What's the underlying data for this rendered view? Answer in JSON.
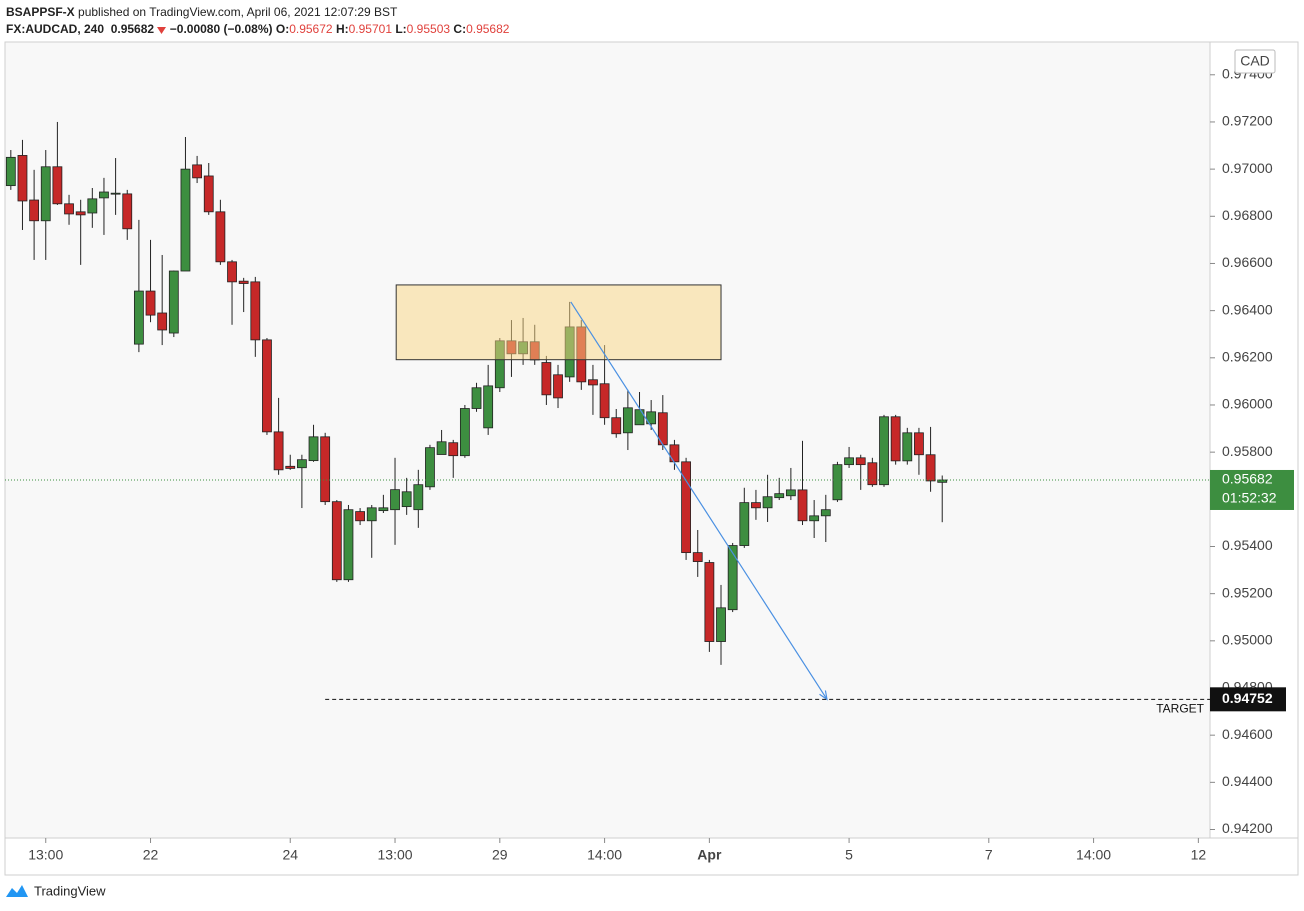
{
  "chart_data": {
    "type": "candlestick",
    "header": {
      "author": "BSAPPSF-X",
      "published": "published on TradingView.com, April 06, 2021 12:07:29 BST",
      "symbol": "FX:AUDCAD, 240",
      "change": "−0.00080 (−0.08%)",
      "ohlc_labels": [
        "O:",
        "H:",
        "L:",
        "C:"
      ]
    },
    "currency": "CAD",
    "countdown": "01:52:32",
    "target": {
      "value": 0.94752,
      "label": "TARGET",
      "x_start": 27
    },
    "zone": {
      "x": [
        33.1,
        61
      ],
      "y": [
        0.96192,
        0.96509
      ]
    },
    "arrow": {
      "x": [
        48.1,
        70.1
      ],
      "y": [
        0.96437,
        0.94752
      ]
    },
    "logo": "TradingView",
    "up_color": "#3d8e40",
    "down_color": "#c62828",
    "x": [
      0,
      1,
      2,
      3,
      4,
      5,
      6,
      7,
      8,
      9,
      10,
      11,
      12,
      13,
      14,
      15,
      16,
      17,
      18,
      19,
      20,
      21,
      22,
      23,
      24,
      25,
      26,
      27,
      28,
      29,
      30,
      31,
      32,
      33,
      34,
      35,
      36,
      37,
      38,
      39,
      40,
      41,
      42,
      43,
      44,
      45,
      46,
      47,
      48,
      49,
      50,
      51,
      52,
      53,
      54,
      55,
      56,
      57,
      58,
      59,
      60,
      61,
      62,
      63,
      64,
      65,
      66,
      67,
      68,
      69,
      70,
      71,
      72,
      73,
      74,
      75,
      76,
      77,
      78,
      79,
      80
    ],
    "open": [
      0.9693,
      0.97058,
      0.96869,
      0.96781,
      0.9701,
      0.96853,
      0.96819,
      0.96814,
      0.96878,
      0.96895,
      0.96895,
      0.96258,
      0.96483,
      0.9639,
      0.96305,
      0.96568,
      0.97018,
      0.96971,
      0.96819,
      0.96607,
      0.96525,
      0.96522,
      0.96276,
      0.95886,
      0.9574,
      0.95734,
      0.95764,
      0.95865,
      0.9559,
      0.95259,
      0.95548,
      0.95509,
      0.95552,
      0.95556,
      0.95569,
      0.95556,
      0.95653,
      0.9579,
      0.9584,
      0.95785,
      0.95985,
      0.95903,
      0.96073,
      0.96272,
      0.96217,
      0.96268,
      0.9618,
      0.96128,
      0.96119,
      0.96331,
      0.96107,
      0.9609,
      0.95946,
      0.95882,
      0.95916,
      0.9592,
      0.95967,
      0.95831,
      0.95759,
      0.95374,
      0.95332,
      0.94997,
      0.95132,
      0.95404,
      0.95586,
      0.95564,
      0.95607,
      0.95615,
      0.9564,
      0.95509,
      0.9553,
      0.95598,
      0.95747,
      0.95776,
      0.95755,
      0.95662,
      0.9595,
      0.95763,
      0.95882,
      0.95789,
      0.95672
    ],
    "high": [
      0.97081,
      0.97124,
      0.96997,
      0.97081,
      0.972,
      0.96891,
      0.9687,
      0.9692,
      0.96963,
      0.97047,
      0.96912,
      0.96785,
      0.967,
      0.96636,
      0.9657,
      0.97136,
      0.97056,
      0.97026,
      0.9687,
      0.96615,
      0.96539,
      0.96543,
      0.96284,
      0.9603,
      0.95789,
      0.95789,
      0.95916,
      0.95882,
      0.95597,
      0.95576,
      0.95563,
      0.95576,
      0.95619,
      0.95776,
      0.95691,
      0.95725,
      0.95831,
      0.95894,
      0.95852,
      0.96,
      0.96094,
      0.9617,
      0.96284,
      0.9636,
      0.96369,
      0.9634,
      0.96208,
      0.9617,
      0.96437,
      0.9636,
      0.9617,
      0.96254,
      0.95983,
      0.96064,
      0.96055,
      0.96021,
      0.96042,
      0.95852,
      0.95776,
      0.9547,
      0.95343,
      0.95237,
      0.95415,
      0.95649,
      0.9564,
      0.95704,
      0.95691,
      0.95733,
      0.95848,
      0.95597,
      0.95619,
      0.95759,
      0.95822,
      0.95789,
      0.95776,
      0.95958,
      0.95958,
      0.95903,
      0.95903,
      0.95907,
      0.95701
    ],
    "low": [
      0.96912,
      0.96742,
      0.96615,
      0.96615,
      0.96848,
      0.96764,
      0.96594,
      0.96751,
      0.96721,
      0.96806,
      0.967,
      0.96224,
      0.96351,
      0.96254,
      0.96288,
      0.96568,
      0.96941,
      0.96806,
      0.96594,
      0.9634,
      0.96394,
      0.96204,
      0.95873,
      0.95704,
      0.95725,
      0.95563,
      0.95759,
      0.95576,
      0.9525,
      0.9525,
      0.95491,
      0.95352,
      0.95542,
      0.95407,
      0.95534,
      0.95479,
      0.9564,
      0.95801,
      0.95691,
      0.95776,
      0.95971,
      0.95873,
      0.96055,
      0.96119,
      0.9617,
      0.9617,
      0.96,
      0.95987,
      0.96098,
      0.96064,
      0.95958,
      0.95916,
      0.95861,
      0.95809,
      0.95916,
      0.95894,
      0.95809,
      0.95725,
      0.95343,
      0.95271,
      0.94953,
      0.94898,
      0.95122,
      0.95394,
      0.95513,
      0.95504,
      0.95597,
      0.95597,
      0.95491,
      0.95436,
      0.95419,
      0.95589,
      0.95733,
      0.9564,
      0.95653,
      0.95653,
      0.95747,
      0.95747,
      0.95704,
      0.95632,
      0.95503
    ],
    "close": [
      0.9705,
      0.96865,
      0.96781,
      0.9701,
      0.96853,
      0.9681,
      0.96806,
      0.96874,
      0.96903,
      0.96898,
      0.96747,
      0.96483,
      0.96381,
      0.96318,
      0.96568,
      0.97,
      0.96963,
      0.96819,
      0.96607,
      0.96522,
      0.96515,
      0.96276,
      0.95886,
      0.95725,
      0.95731,
      0.95768,
      0.95865,
      0.9559,
      0.95259,
      0.95556,
      0.95509,
      0.95564,
      0.95564,
      0.95641,
      0.95632,
      0.95662,
      0.95819,
      0.95844,
      0.95785,
      0.95985,
      0.96073,
      0.96081,
      0.96272,
      0.96217,
      0.96268,
      0.96191,
      0.96043,
      0.9603,
      0.96331,
      0.96098,
      0.96085,
      0.95946,
      0.95878,
      0.95988,
      0.9598,
      0.95971,
      0.95831,
      0.95759,
      0.95374,
      0.95336,
      0.94997,
      0.9514,
      0.95404,
      0.95586,
      0.95564,
      0.95611,
      0.95624,
      0.9564,
      0.95509,
      0.9553,
      0.95556,
      0.95747,
      0.95776,
      0.95747,
      0.95662,
      0.9595,
      0.95763,
      0.95882,
      0.95789,
      0.95678,
      0.95682
    ],
    "xlim": [
      -0.5,
      103
    ],
    "xticks": [
      {
        "value": 3,
        "label": "13:00"
      },
      {
        "value": 12,
        "label": "22"
      },
      {
        "value": 24,
        "label": "24"
      },
      {
        "value": 33,
        "label": "13:00"
      },
      {
        "value": 42,
        "label": "29"
      },
      {
        "value": 51,
        "label": "14:00"
      },
      {
        "value": 60,
        "label": "Apr"
      },
      {
        "value": 72,
        "label": "5"
      },
      {
        "value": 84,
        "label": "7"
      },
      {
        "value": 93,
        "label": "14:00"
      },
      {
        "value": 102,
        "label": "12"
      }
    ],
    "ylim": [
      0.94164,
      0.97539
    ],
    "yticks": [
      {
        "value": 0.942,
        "label": "0.94200"
      },
      {
        "value": 0.944,
        "label": "0.94400"
      },
      {
        "value": 0.946,
        "label": "0.94600"
      },
      {
        "value": 0.948,
        "label": "0.94800"
      },
      {
        "value": 0.95,
        "label": "0.95000"
      },
      {
        "value": 0.952,
        "label": "0.95200"
      },
      {
        "value": 0.954,
        "label": "0.95400"
      },
      {
        "value": 0.956,
        "label": "0.95600"
      },
      {
        "value": 0.958,
        "label": "0.95800"
      },
      {
        "value": 0.96,
        "label": "0.96000"
      },
      {
        "value": 0.962,
        "label": "0.96200"
      },
      {
        "value": 0.964,
        "label": "0.96400"
      },
      {
        "value": 0.966,
        "label": "0.96600"
      },
      {
        "value": 0.968,
        "label": "0.96800"
      },
      {
        "value": 0.97,
        "label": "0.97000"
      },
      {
        "value": 0.972,
        "label": "0.97200"
      },
      {
        "value": 0.974,
        "label": "0.97400"
      }
    ]
  }
}
